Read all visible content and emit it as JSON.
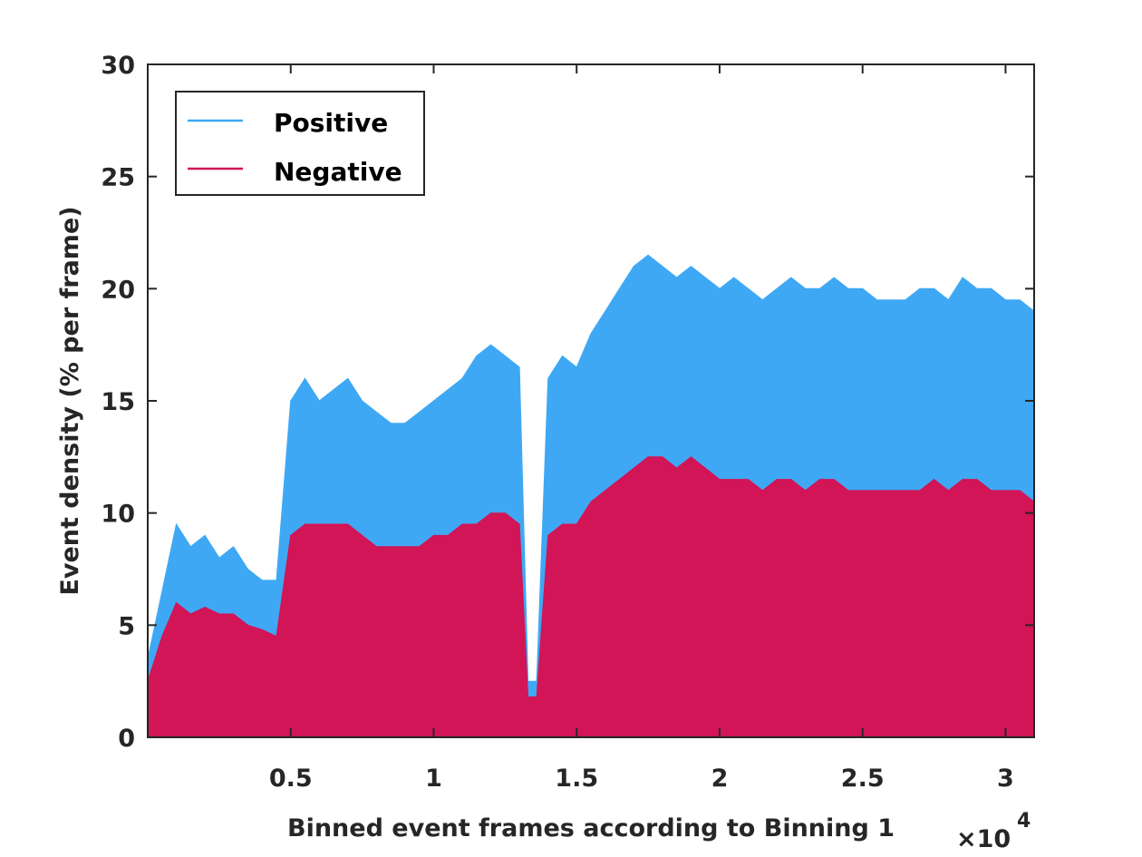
{
  "chart_data": {
    "type": "area",
    "xlabel": "Binned event frames according to Binning 1",
    "ylabel": "Event density (% per frame)",
    "x_multiplier_base": "×10",
    "x_multiplier_exp": "4",
    "xlim": [
      0,
      31000
    ],
    "ylim": [
      0,
      30
    ],
    "xticks": [
      5000,
      10000,
      15000,
      20000,
      25000,
      30000
    ],
    "xtick_labels": [
      "0.5",
      "1",
      "1.5",
      "2",
      "2.5",
      "3"
    ],
    "yticks": [
      0,
      5,
      10,
      15,
      20,
      25,
      30
    ],
    "ytick_labels": [
      "0",
      "5",
      "10",
      "15",
      "20",
      "25",
      "30"
    ],
    "legend_position": "top-left",
    "grid": false,
    "series": [
      {
        "name": "Positive",
        "color": "#3fa8f4",
        "x": [
          0,
          500,
          1000,
          1500,
          2000,
          2500,
          3000,
          3500,
          4000,
          4500,
          5000,
          5500,
          6000,
          6500,
          7000,
          7500,
          8000,
          8500,
          9000,
          9500,
          10000,
          10500,
          11000,
          11500,
          12000,
          12500,
          13000,
          13300,
          13600,
          14000,
          14500,
          15000,
          15500,
          16000,
          16500,
          17000,
          17500,
          18000,
          18500,
          19000,
          19500,
          20000,
          20500,
          21000,
          21500,
          22000,
          22500,
          23000,
          23500,
          24000,
          24500,
          25000,
          25500,
          26000,
          26500,
          27000,
          27500,
          28000,
          28500,
          29000,
          29500,
          30000,
          30500,
          31000
        ],
        "y": [
          3.5,
          6.5,
          9.5,
          8.5,
          9.0,
          8.0,
          8.5,
          7.5,
          7.0,
          7.0,
          15.0,
          16.0,
          15.0,
          15.5,
          16.0,
          15.0,
          14.5,
          14.0,
          14.0,
          14.5,
          15.0,
          15.5,
          16.0,
          17.0,
          17.5,
          17.0,
          16.5,
          2.5,
          2.5,
          16.0,
          17.0,
          16.5,
          18.0,
          19.0,
          20.0,
          21.0,
          21.5,
          21.0,
          20.5,
          21.0,
          20.5,
          20.0,
          20.5,
          20.0,
          19.5,
          20.0,
          20.5,
          20.0,
          20.0,
          20.5,
          20.0,
          20.0,
          19.5,
          19.5,
          19.5,
          20.0,
          20.0,
          19.5,
          20.5,
          20.0,
          20.0,
          19.5,
          19.5,
          19.0
        ]
      },
      {
        "name": "Negative",
        "color": "#d11557",
        "x": [
          0,
          500,
          1000,
          1500,
          2000,
          2500,
          3000,
          3500,
          4000,
          4500,
          5000,
          5500,
          6000,
          6500,
          7000,
          7500,
          8000,
          8500,
          9000,
          9500,
          10000,
          10500,
          11000,
          11500,
          12000,
          12500,
          13000,
          13300,
          13600,
          14000,
          14500,
          15000,
          15500,
          16000,
          16500,
          17000,
          17500,
          18000,
          18500,
          19000,
          19500,
          20000,
          20500,
          21000,
          21500,
          22000,
          22500,
          23000,
          23500,
          24000,
          24500,
          25000,
          25500,
          26000,
          26500,
          27000,
          27500,
          28000,
          28500,
          29000,
          29500,
          30000,
          30500,
          31000
        ],
        "y": [
          2.5,
          4.5,
          6.0,
          5.5,
          5.8,
          5.5,
          5.5,
          5.0,
          4.8,
          4.5,
          9.0,
          9.5,
          9.5,
          9.5,
          9.5,
          9.0,
          8.5,
          8.5,
          8.5,
          8.5,
          9.0,
          9.0,
          9.5,
          9.5,
          10.0,
          10.0,
          9.5,
          1.8,
          1.8,
          9.0,
          9.5,
          9.5,
          10.5,
          11.0,
          11.5,
          12.0,
          12.5,
          12.5,
          12.0,
          12.5,
          12.0,
          11.5,
          11.5,
          11.5,
          11.0,
          11.5,
          11.5,
          11.0,
          11.5,
          11.5,
          11.0,
          11.0,
          11.0,
          11.0,
          11.0,
          11.0,
          11.5,
          11.0,
          11.5,
          11.5,
          11.0,
          11.0,
          11.0,
          10.5
        ]
      }
    ]
  }
}
